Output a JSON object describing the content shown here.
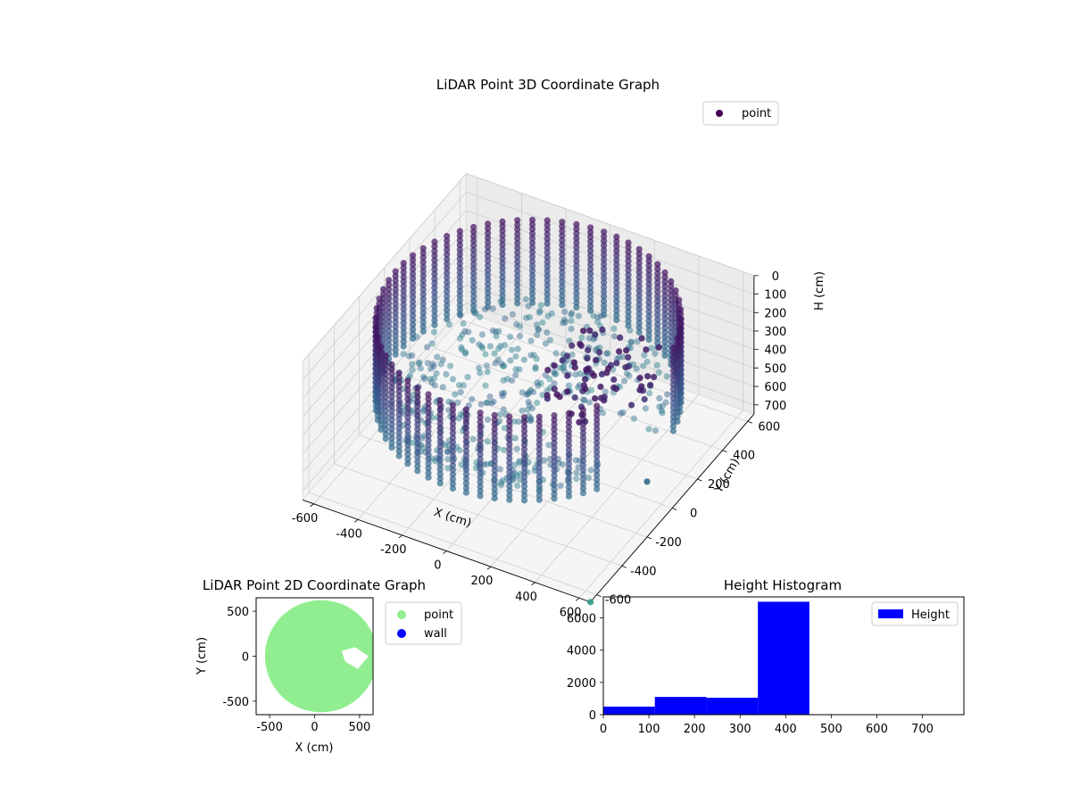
{
  "chart_data": [
    {
      "type": "scatter3d",
      "title": "LiDAR Point 3D Coordinate Graph",
      "xlabel": "X (cm)",
      "ylabel": "Y (cm)",
      "zlabel": "H (cm)",
      "xticks": [
        -600,
        -400,
        -200,
        0,
        200,
        400,
        600
      ],
      "yticks": [
        -600,
        -400,
        -200,
        0,
        200,
        400,
        600
      ],
      "zticks": [
        0,
        100,
        200,
        300,
        400,
        500,
        600,
        700
      ],
      "xlim": [
        -650,
        650
      ],
      "ylim": [
        -650,
        650
      ],
      "zlim": [
        0,
        750
      ],
      "z_inverted": true,
      "legend": [
        "point"
      ],
      "legend_position": "top-right",
      "colormap": "viridis",
      "grid": true,
      "shape": "cylindrical wall, radius ~600 cm, heights ~0–450 cm, with interior floor points and clutter"
    },
    {
      "type": "scatter",
      "title": "LiDAR Point 2D Coordinate Graph",
      "xlabel": "X (cm)",
      "ylabel": "Y (cm)",
      "xticks": [
        -500,
        0,
        500
      ],
      "yticks": [
        -500,
        0,
        500
      ],
      "xlim": [
        -650,
        650
      ],
      "ylim": [
        -650,
        650
      ],
      "legend": [
        "point",
        "wall"
      ],
      "legend_position": "outside-right",
      "series_colors": {
        "point": "#90ee90",
        "wall": "#0000ff"
      }
    },
    {
      "type": "bar",
      "title": "Height Histogram",
      "legend": [
        "Height"
      ],
      "legend_position": "top-right",
      "bins": [
        [
          0,
          113
        ],
        [
          113,
          226
        ],
        [
          226,
          339
        ],
        [
          339,
          452
        ],
        [
          452,
          565
        ],
        [
          565,
          678
        ],
        [
          678,
          791
        ]
      ],
      "values": [
        500,
        1100,
        1050,
        7000,
        0,
        0,
        0
      ],
      "xticks": [
        0,
        100,
        200,
        300,
        400,
        500,
        600,
        700
      ],
      "yticks": [
        0,
        2000,
        4000,
        6000
      ],
      "xlim": [
        0,
        791
      ],
      "ylim": [
        0,
        7300
      ],
      "color": "#0000ff"
    }
  ]
}
